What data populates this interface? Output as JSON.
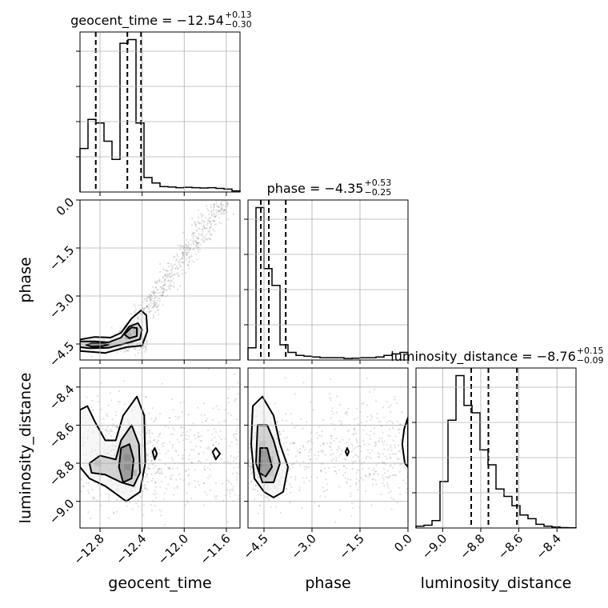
{
  "chart_data": {
    "type": "corner",
    "parameters": [
      {
        "key": "geocent_time",
        "label": "geocent_time",
        "range": [
          -12.99,
          -11.47
        ],
        "ticks": [
          "−12.8",
          "−12.4",
          "−12.0",
          "−11.6"
        ],
        "tick_values": [
          -12.8,
          -12.4,
          -12.0,
          -11.6
        ]
      },
      {
        "key": "phase",
        "label": "phase",
        "range": [
          -5.0,
          0.0
        ],
        "ticks": [
          "−4.5",
          "−3.0",
          "−1.5",
          "0.0"
        ],
        "tick_values": [
          -4.5,
          -3.0,
          -1.5,
          0.0
        ]
      },
      {
        "key": "luminosity_distance",
        "label": "luminosity_distance",
        "range": [
          -9.14,
          -8.3
        ],
        "ticks": [
          "−9.0",
          "−8.8",
          "−8.6",
          "−8.4"
        ],
        "tick_values": [
          -9.0,
          -8.8,
          -8.6,
          -8.4
        ]
      }
    ],
    "titles": [
      {
        "main": "geocent_time = −12.54",
        "sup": "+0.13",
        "sub": "−0.30"
      },
      {
        "main": "phase = −4.35",
        "sup": "+0.53",
        "sub": "−0.25"
      },
      {
        "main": "luminosity_distance = −8.76",
        "sup": "+0.15",
        "sub": "−0.09"
      }
    ],
    "histograms": [
      {
        "param": "geocent_time",
        "edges_start": -12.99,
        "bin_width": 0.076,
        "counts": [
          0.12,
          0.2,
          0.19,
          0.14,
          0.09,
          0.41,
          0.42,
          0.19,
          0.04,
          0.025,
          0.015,
          0.014,
          0.012,
          0.013,
          0.012,
          0.011,
          0.012,
          0.01,
          0.008,
          0.003
        ],
        "quantiles": [
          -12.84,
          -12.54,
          -12.41
        ]
      },
      {
        "param": "phase",
        "edges_start": -5.0,
        "bin_width": 0.25,
        "counts": [
          0.08,
          1.0,
          0.6,
          0.49,
          0.1,
          0.05,
          0.03,
          0.025,
          0.02,
          0.015,
          0.015,
          0.015,
          0.01,
          0.012,
          0.015,
          0.015,
          0.02,
          0.03,
          0.04,
          0.05
        ],
        "quantiles": [
          -4.6,
          -4.35,
          -3.82
        ]
      },
      {
        "param": "luminosity_distance",
        "edges_start": -9.14,
        "bin_width": 0.042,
        "counts": [
          0.01,
          0.015,
          0.04,
          0.25,
          0.58,
          0.82,
          0.66,
          0.62,
          0.42,
          0.34,
          0.21,
          0.17,
          0.12,
          0.07,
          0.05,
          0.02,
          0.01,
          0.005,
          0.002,
          0.001
        ],
        "quantiles": [
          -8.85,
          -8.76,
          -8.61
        ]
      }
    ],
    "densities": [
      {
        "x": "geocent_time",
        "y": "phase",
        "bins": [
          [
            -12.8,
            -4.53,
            0.9
          ],
          [
            -12.72,
            -4.53,
            0.5
          ],
          [
            -12.88,
            -4.53,
            0.3
          ],
          [
            -12.53,
            -4.25,
            0.85
          ],
          [
            -12.46,
            -4.1,
            0.6
          ],
          [
            -12.53,
            -4.05,
            0.4
          ]
        ],
        "contours": [
          [
            [
              -12.99,
              -4.36
            ],
            [
              -12.85,
              -4.28
            ],
            [
              -12.7,
              -4.3
            ],
            [
              -12.6,
              -4.15
            ],
            [
              -12.5,
              -3.7
            ],
            [
              -12.41,
              -3.45
            ],
            [
              -12.36,
              -3.6
            ],
            [
              -12.35,
              -4.1
            ],
            [
              -12.4,
              -4.55
            ],
            [
              -12.55,
              -4.6
            ],
            [
              -12.75,
              -4.78
            ],
            [
              -12.99,
              -4.72
            ]
          ],
          [
            [
              -12.99,
              -4.42
            ],
            [
              -12.85,
              -4.42
            ],
            [
              -12.72,
              -4.45
            ],
            [
              -12.6,
              -4.3
            ],
            [
              -12.52,
              -3.95
            ],
            [
              -12.44,
              -3.85
            ],
            [
              -12.4,
              -4.05
            ],
            [
              -12.42,
              -4.35
            ],
            [
              -12.52,
              -4.45
            ],
            [
              -12.72,
              -4.62
            ],
            [
              -12.9,
              -4.63
            ],
            [
              -12.99,
              -4.6
            ]
          ],
          [
            [
              -12.88,
              -4.48
            ],
            [
              -12.78,
              -4.48
            ],
            [
              -12.72,
              -4.52
            ],
            [
              -12.78,
              -4.57
            ],
            [
              -12.88,
              -4.58
            ],
            [
              -12.93,
              -4.53
            ]
          ],
          [
            [
              -12.57,
              -4.2
            ],
            [
              -12.5,
              -3.98
            ],
            [
              -12.45,
              -4.0
            ],
            [
              -12.45,
              -4.25
            ],
            [
              -12.52,
              -4.32
            ]
          ]
        ],
        "scatter_model": "diagonal"
      },
      {
        "x": "geocent_time",
        "y": "luminosity_distance",
        "bins": [
          [
            -12.54,
            -8.77,
            0.95
          ],
          [
            -12.54,
            -8.82,
            0.9
          ],
          [
            -12.48,
            -8.85,
            0.7
          ],
          [
            -12.82,
            -8.8,
            0.4
          ],
          [
            -12.6,
            -8.72,
            0.3
          ]
        ],
        "contours": [
          [
            [
              -12.99,
              -8.52
            ],
            [
              -12.92,
              -8.5
            ],
            [
              -12.85,
              -8.58
            ],
            [
              -12.75,
              -8.68
            ],
            [
              -12.65,
              -8.68
            ],
            [
              -12.58,
              -8.55
            ],
            [
              -12.45,
              -8.45
            ],
            [
              -12.38,
              -8.55
            ],
            [
              -12.37,
              -8.8
            ],
            [
              -12.42,
              -8.95
            ],
            [
              -12.55,
              -9.0
            ],
            [
              -12.75,
              -8.92
            ],
            [
              -12.9,
              -8.88
            ],
            [
              -12.99,
              -8.82
            ]
          ],
          [
            [
              -12.9,
              -8.8
            ],
            [
              -12.8,
              -8.76
            ],
            [
              -12.65,
              -8.78
            ],
            [
              -12.6,
              -8.68
            ],
            [
              -12.5,
              -8.6
            ],
            [
              -12.43,
              -8.7
            ],
            [
              -12.42,
              -8.85
            ],
            [
              -12.48,
              -8.92
            ],
            [
              -12.6,
              -8.9
            ],
            [
              -12.75,
              -8.86
            ],
            [
              -12.88,
              -8.85
            ]
          ],
          [
            [
              -12.6,
              -8.72
            ],
            [
              -12.52,
              -8.7
            ],
            [
              -12.48,
              -8.78
            ],
            [
              -12.5,
              -8.88
            ],
            [
              -12.58,
              -8.9
            ],
            [
              -12.62,
              -8.82
            ]
          ],
          [
            [
              -12.3,
              -8.74
            ],
            [
              -12.28,
              -8.72
            ],
            [
              -12.26,
              -8.75
            ],
            [
              -12.28,
              -8.78
            ]
          ],
          [
            [
              -11.73,
              -8.74
            ],
            [
              -11.7,
              -8.72
            ],
            [
              -11.66,
              -8.75
            ],
            [
              -11.7,
              -8.78
            ]
          ]
        ],
        "scatter_model": "cloud"
      },
      {
        "x": "phase",
        "y": "luminosity_distance",
        "bins": [
          [
            -4.55,
            -8.8,
            0.95
          ],
          [
            -4.55,
            -8.75,
            0.7
          ],
          [
            -4.3,
            -8.78,
            0.5
          ],
          [
            -4.3,
            -8.85,
            0.3
          ],
          [
            -4.55,
            -8.7,
            0.3
          ]
        ],
        "contours": [
          [
            [
              -4.85,
              -8.5
            ],
            [
              -4.55,
              -8.45
            ],
            [
              -4.2,
              -8.55
            ],
            [
              -4.0,
              -8.7
            ],
            [
              -3.75,
              -8.82
            ],
            [
              -3.9,
              -8.95
            ],
            [
              -4.2,
              -8.98
            ],
            [
              -4.5,
              -8.95
            ],
            [
              -4.8,
              -8.88
            ],
            [
              -4.9,
              -8.7
            ]
          ],
          [
            [
              -4.7,
              -8.6
            ],
            [
              -4.4,
              -8.6
            ],
            [
              -4.2,
              -8.68
            ],
            [
              -4.0,
              -8.8
            ],
            [
              -4.2,
              -8.9
            ],
            [
              -4.55,
              -8.9
            ],
            [
              -4.75,
              -8.8
            ]
          ],
          [
            [
              -4.62,
              -8.72
            ],
            [
              -4.4,
              -8.72
            ],
            [
              -4.25,
              -8.82
            ],
            [
              -4.45,
              -8.87
            ],
            [
              -4.65,
              -8.85
            ]
          ],
          [
            [
              -1.9,
              -8.72
            ],
            [
              -1.85,
              -8.74
            ],
            [
              -1.9,
              -8.76
            ],
            [
              -1.95,
              -8.74
            ]
          ],
          [
            [
              0.0,
              -8.56
            ],
            [
              -0.12,
              -8.62
            ],
            [
              -0.18,
              -8.7
            ],
            [
              -0.1,
              -8.8
            ],
            [
              0.0,
              -8.82
            ]
          ]
        ],
        "scatter_model": "cloud"
      }
    ]
  }
}
